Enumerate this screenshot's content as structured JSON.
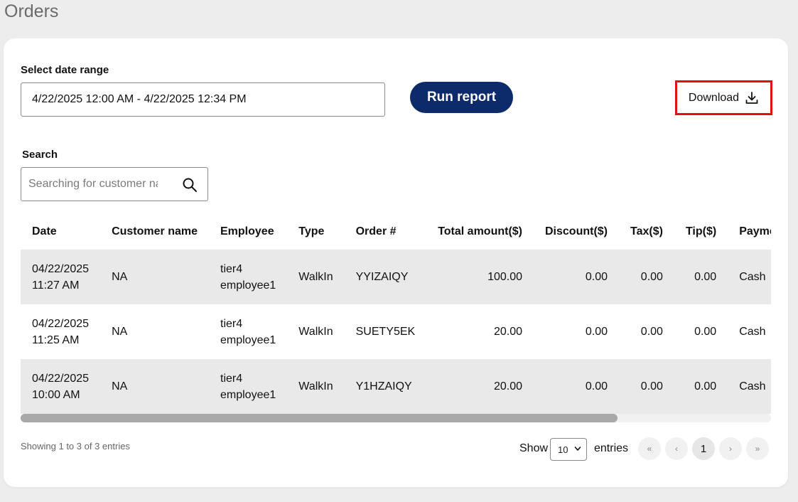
{
  "page": {
    "title": "Orders"
  },
  "filters": {
    "date_range_label": "Select date range",
    "date_range_value": "4/22/2025 12:00 AM - 4/22/2025 12:34 PM",
    "run_report_label": "Run report",
    "download_label": "Download",
    "download_icon": "download-icon"
  },
  "search": {
    "label": "Search",
    "placeholder": "Searching for customer name",
    "icon": "search-icon"
  },
  "table": {
    "columns": [
      "Date",
      "Customer name",
      "Employee",
      "Type",
      "Order #",
      "Total amount($)",
      "Discount($)",
      "Tax($)",
      "Tip($)",
      "Payments"
    ],
    "rows": [
      {
        "date": "04/22/2025",
        "time": "11:27 AM",
        "customer": "NA",
        "employee_first": "tier4",
        "employee_last": "employee1",
        "type": "WalkIn",
        "order": "YYIZAIQY",
        "total": "100.00",
        "discount": "0.00",
        "tax": "0.00",
        "tip": "0.00",
        "payment": "Cash"
      },
      {
        "date": "04/22/2025",
        "time": "11:25 AM",
        "customer": "NA",
        "employee_first": "tier4",
        "employee_last": "employee1",
        "type": "WalkIn",
        "order": "SUETY5EK",
        "total": "20.00",
        "discount": "0.00",
        "tax": "0.00",
        "tip": "0.00",
        "payment": "Cash"
      },
      {
        "date": "04/22/2025",
        "time": "10:00 AM",
        "customer": "NA",
        "employee_first": "tier4",
        "employee_last": "employee1",
        "type": "WalkIn",
        "order": "Y1HZAIQY",
        "total": "20.00",
        "discount": "0.00",
        "tax": "0.00",
        "tip": "0.00",
        "payment": "Cash"
      }
    ]
  },
  "pagination": {
    "info": "Showing 1 to 3 of 3 entries",
    "show_label": "Show",
    "page_size": "10",
    "entries_label": "entries",
    "first": "«",
    "prev": "‹",
    "current": "1",
    "next": "›",
    "last": "»"
  },
  "colors": {
    "accent": "#0d2a6b",
    "highlight": "#e01010",
    "row_stripe": "#e9e9e9"
  }
}
